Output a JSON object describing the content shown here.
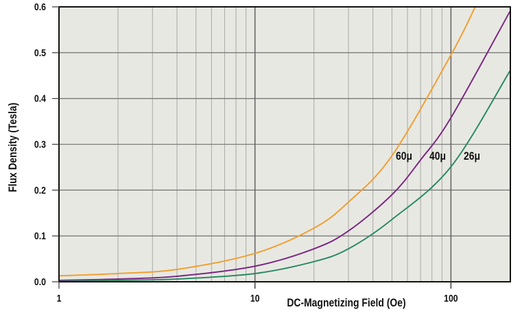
{
  "chart_data": {
    "type": "line",
    "title": "",
    "xlabel": "DC-Magnetizing Field (Oe)",
    "ylabel": "Flux Density (Tesla)",
    "xscale": "log",
    "xlim": [
      1,
      200
    ],
    "ylim": [
      0,
      0.6
    ],
    "grid": true,
    "legend": "inline labels",
    "xticks": [
      1,
      10,
      100
    ],
    "xtick_labels": [
      "1",
      "10",
      "100"
    ],
    "yticks": [
      0,
      0.1,
      0.2,
      0.3,
      0.4,
      0.5,
      0.6
    ],
    "ytick_labels": [
      "0.0",
      "0.1",
      "0.2",
      "0.3",
      "0.4",
      "0.5",
      "0.6"
    ],
    "series": [
      {
        "name": "60μ",
        "color": "#f0a030",
        "x": [
          1,
          2,
          4,
          10,
          20,
          30,
          50,
          100,
          133
        ],
        "y": [
          0.013,
          0.018,
          0.027,
          0.062,
          0.117,
          0.174,
          0.275,
          0.495,
          0.6
        ]
      },
      {
        "name": "40μ",
        "color": "#7b2a82",
        "x": [
          1,
          2,
          4,
          10,
          20,
          30,
          50,
          70,
          100,
          200
        ],
        "y": [
          0.003,
          0.006,
          0.012,
          0.034,
          0.072,
          0.111,
          0.19,
          0.266,
          0.358,
          0.59
        ]
      },
      {
        "name": "26μ",
        "color": "#2a8a64",
        "x": [
          1,
          2,
          4,
          10,
          20,
          30,
          50,
          100,
          200
        ],
        "y": [
          0.001,
          0.003,
          0.006,
          0.018,
          0.044,
          0.072,
          0.136,
          0.251,
          0.46
        ]
      }
    ]
  }
}
